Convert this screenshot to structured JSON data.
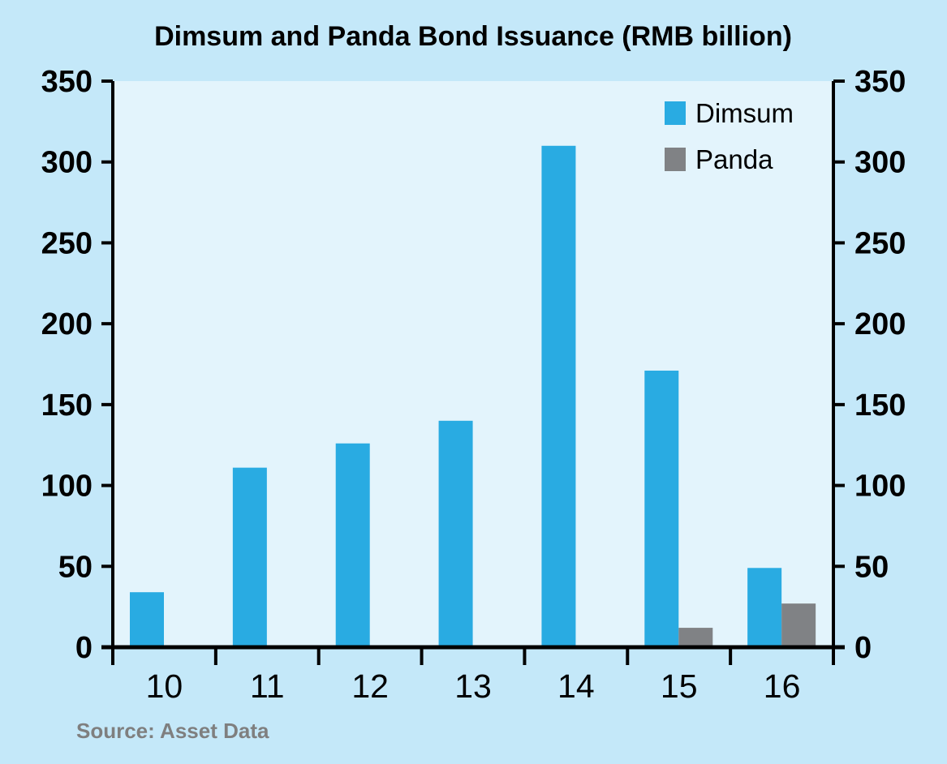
{
  "chart_data": {
    "type": "bar",
    "title": "Dimsum and Panda Bond Issuance (RMB billion)",
    "source": "Source: Asset Data",
    "categories": [
      "10",
      "11",
      "12",
      "13",
      "14",
      "15",
      "16"
    ],
    "series": [
      {
        "name": "Dimsum",
        "color": "#29abe2",
        "values": [
          34,
          111,
          126,
          140,
          310,
          171,
          49
        ]
      },
      {
        "name": "Panda",
        "color": "#808285",
        "values": [
          0,
          0,
          0,
          0,
          0,
          12,
          27
        ]
      }
    ],
    "ylim": [
      0,
      350
    ],
    "yticks": [
      "0",
      "50",
      "100",
      "150",
      "200",
      "250",
      "300",
      "350"
    ],
    "y_axis_right": true,
    "grid": false,
    "legend_position": "top-right",
    "plot_background": "#e3f4fc",
    "page_background": "#c4e8f9"
  }
}
